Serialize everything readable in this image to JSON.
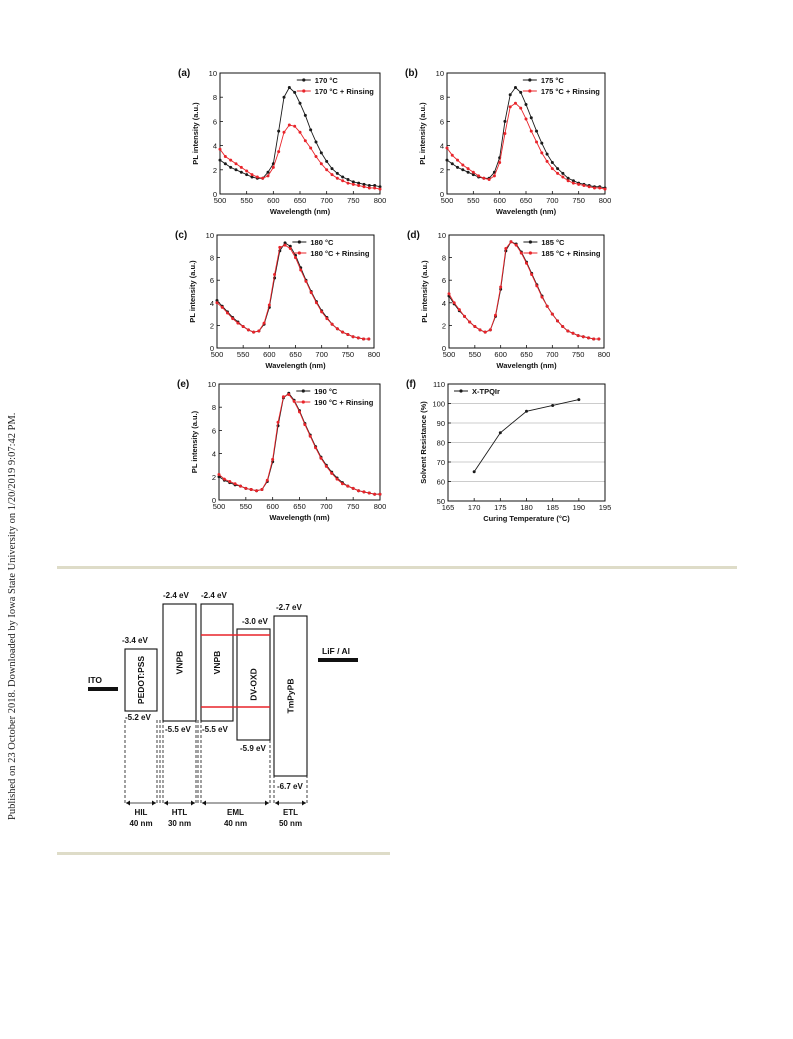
{
  "sidebar_text": "Published on 23 October 2018. Downloaded by Iowa State University on 1/20/2019 9:07:42 PM.",
  "colors": {
    "black_series": "#1a1a1a",
    "red_series": "#e8242a",
    "rule": "#dedcc8",
    "energy_red": "#e8242a"
  },
  "chart_data": [
    {
      "panel": "(a)",
      "type": "line",
      "xlabel": "Wavelength (nm)",
      "ylabel": "PL intensity (a.u.)",
      "xlim": [
        500,
        800
      ],
      "ylim": [
        0,
        10
      ],
      "xticks": [
        "500",
        "550",
        "600",
        "650",
        "700",
        "750",
        "800"
      ],
      "yticks": [
        "0",
        "2",
        "4",
        "6",
        "8",
        "10"
      ],
      "x": [
        500,
        510,
        520,
        530,
        540,
        550,
        560,
        570,
        580,
        590,
        600,
        610,
        620,
        630,
        640,
        650,
        660,
        670,
        680,
        690,
        700,
        710,
        720,
        730,
        740,
        750,
        760,
        770,
        780,
        790,
        800
      ],
      "series": [
        {
          "name": "170 °C",
          "color": "#1a1a1a",
          "values": [
            2.8,
            2.5,
            2.2,
            2.0,
            1.8,
            1.6,
            1.4,
            1.3,
            1.3,
            1.8,
            2.5,
            5.2,
            8.0,
            8.8,
            8.4,
            7.5,
            6.5,
            5.3,
            4.3,
            3.4,
            2.7,
            2.1,
            1.7,
            1.4,
            1.2,
            1.0,
            0.9,
            0.8,
            0.7,
            0.7,
            0.6
          ]
        },
        {
          "name": "170 °C + Rinsing",
          "color": "#e8242a",
          "values": [
            3.7,
            3.1,
            2.8,
            2.5,
            2.2,
            1.9,
            1.6,
            1.4,
            1.3,
            1.5,
            2.2,
            3.5,
            5.1,
            5.7,
            5.6,
            5.1,
            4.4,
            3.8,
            3.1,
            2.5,
            2.0,
            1.6,
            1.3,
            1.1,
            0.9,
            0.8,
            0.7,
            0.6,
            0.5,
            0.5,
            0.4
          ]
        }
      ]
    },
    {
      "panel": "(b)",
      "type": "line",
      "xlabel": "Wavelength (nm)",
      "ylabel": "PL intensity (a.u.)",
      "xlim": [
        500,
        800
      ],
      "ylim": [
        0,
        10
      ],
      "xticks": [
        "500",
        "550",
        "600",
        "650",
        "700",
        "750",
        "800"
      ],
      "yticks": [
        "0",
        "2",
        "4",
        "6",
        "8",
        "10"
      ],
      "x": [
        500,
        510,
        520,
        530,
        540,
        550,
        560,
        570,
        580,
        590,
        600,
        610,
        620,
        630,
        640,
        650,
        660,
        670,
        680,
        690,
        700,
        710,
        720,
        730,
        740,
        750,
        760,
        770,
        780,
        790,
        800
      ],
      "series": [
        {
          "name": "175 °C",
          "color": "#1a1a1a",
          "values": [
            2.8,
            2.5,
            2.2,
            2.0,
            1.8,
            1.6,
            1.4,
            1.3,
            1.3,
            1.8,
            3.0,
            6.0,
            8.2,
            8.8,
            8.4,
            7.4,
            6.3,
            5.2,
            4.2,
            3.3,
            2.6,
            2.1,
            1.7,
            1.3,
            1.1,
            0.9,
            0.8,
            0.7,
            0.6,
            0.6,
            0.5
          ]
        },
        {
          "name": "175 °C + Rinsing",
          "color": "#e8242a",
          "values": [
            3.8,
            3.2,
            2.8,
            2.4,
            2.1,
            1.8,
            1.5,
            1.3,
            1.2,
            1.5,
            2.6,
            5.0,
            7.2,
            7.5,
            7.1,
            6.2,
            5.2,
            4.3,
            3.4,
            2.7,
            2.1,
            1.7,
            1.4,
            1.1,
            0.9,
            0.8,
            0.7,
            0.6,
            0.5,
            0.5,
            0.4
          ]
        }
      ]
    },
    {
      "panel": "(c)",
      "type": "line",
      "xlabel": "Wavelength (nm)",
      "ylabel": "PL intensity (a.u.)",
      "xlim": [
        500,
        800
      ],
      "ylim": [
        0,
        10
      ],
      "xticks": [
        "500",
        "550",
        "600",
        "650",
        "700",
        "750",
        "800"
      ],
      "yticks": [
        "0",
        "2",
        "4",
        "6",
        "8",
        "10"
      ],
      "x": [
        500,
        510,
        520,
        530,
        540,
        550,
        560,
        570,
        580,
        590,
        600,
        610,
        620,
        630,
        640,
        650,
        660,
        670,
        680,
        690,
        700,
        710,
        720,
        730,
        740,
        750,
        760,
        770,
        780,
        790
      ],
      "series": [
        {
          "name": "180 °C",
          "color": "#1a1a1a",
          "values": [
            4.2,
            3.7,
            3.2,
            2.7,
            2.3,
            1.9,
            1.6,
            1.4,
            1.5,
            2.1,
            3.6,
            6.2,
            8.6,
            9.3,
            9.0,
            8.2,
            7.1,
            6.0,
            5.0,
            4.1,
            3.3,
            2.7,
            2.1,
            1.7,
            1.4,
            1.2,
            1.0,
            0.9,
            0.8,
            0.8
          ]
        },
        {
          "name": "180 °C + Rinsing",
          "color": "#e8242a",
          "values": [
            4.0,
            3.6,
            3.1,
            2.6,
            2.2,
            1.9,
            1.6,
            1.4,
            1.5,
            2.2,
            3.8,
            6.5,
            8.9,
            9.1,
            8.8,
            8.0,
            6.9,
            5.9,
            4.9,
            4.0,
            3.2,
            2.6,
            2.1,
            1.7,
            1.4,
            1.2,
            1.0,
            0.9,
            0.8,
            0.8
          ]
        }
      ]
    },
    {
      "panel": "(d)",
      "type": "line",
      "xlabel": "Wavelength (nm)",
      "ylabel": "PL intensity (a.u.)",
      "xlim": [
        500,
        800
      ],
      "ylim": [
        0,
        10
      ],
      "xticks": [
        "500",
        "550",
        "600",
        "650",
        "700",
        "750",
        "800"
      ],
      "yticks": [
        "0",
        "2",
        "4",
        "6",
        "8",
        "10"
      ],
      "x": [
        500,
        510,
        520,
        530,
        540,
        550,
        560,
        570,
        580,
        590,
        600,
        610,
        620,
        630,
        640,
        650,
        660,
        670,
        680,
        690,
        700,
        710,
        720,
        730,
        740,
        750,
        760,
        770,
        780,
        790
      ],
      "series": [
        {
          "name": "185 °C",
          "color": "#1a1a1a",
          "values": [
            4.6,
            3.9,
            3.3,
            2.8,
            2.3,
            1.9,
            1.6,
            1.4,
            1.6,
            2.8,
            5.2,
            8.6,
            9.4,
            9.2,
            8.5,
            7.6,
            6.6,
            5.6,
            4.6,
            3.7,
            3.0,
            2.4,
            1.9,
            1.5,
            1.3,
            1.1,
            1.0,
            0.9,
            0.8,
            0.8
          ]
        },
        {
          "name": "185 °C + Rinsing",
          "color": "#e8242a",
          "values": [
            4.8,
            4.0,
            3.4,
            2.8,
            2.3,
            1.9,
            1.6,
            1.4,
            1.6,
            2.9,
            5.4,
            8.8,
            9.4,
            9.1,
            8.4,
            7.5,
            6.5,
            5.5,
            4.5,
            3.7,
            3.0,
            2.4,
            1.9,
            1.5,
            1.3,
            1.1,
            1.0,
            0.9,
            0.8,
            0.8
          ]
        }
      ]
    },
    {
      "panel": "(e)",
      "type": "line",
      "xlabel": "Wavelength (nm)",
      "ylabel": "PL intensity (a.u.)",
      "xlim": [
        500,
        800
      ],
      "ylim": [
        0,
        10
      ],
      "xticks": [
        "500",
        "550",
        "600",
        "650",
        "700",
        "750",
        "800"
      ],
      "yticks": [
        "0",
        "2",
        "4",
        "6",
        "8",
        "10"
      ],
      "x": [
        500,
        510,
        520,
        530,
        540,
        550,
        560,
        570,
        580,
        590,
        600,
        610,
        620,
        630,
        640,
        650,
        660,
        670,
        680,
        690,
        700,
        710,
        720,
        730,
        740,
        750,
        760,
        770,
        780,
        790,
        800
      ],
      "series": [
        {
          "name": "190 °C",
          "color": "#1a1a1a",
          "values": [
            2.0,
            1.7,
            1.5,
            1.3,
            1.2,
            1.0,
            0.9,
            0.8,
            0.9,
            1.6,
            3.3,
            6.4,
            8.8,
            9.2,
            8.6,
            7.7,
            6.6,
            5.6,
            4.6,
            3.7,
            3.0,
            2.4,
            1.9,
            1.5,
            1.2,
            1.0,
            0.8,
            0.7,
            0.6,
            0.5,
            0.5
          ]
        },
        {
          "name": "190 °C + Rinsing",
          "color": "#e8242a",
          "values": [
            2.2,
            1.8,
            1.6,
            1.4,
            1.2,
            1.0,
            0.9,
            0.8,
            0.9,
            1.7,
            3.5,
            6.7,
            8.9,
            9.1,
            8.5,
            7.6,
            6.5,
            5.5,
            4.5,
            3.6,
            2.9,
            2.3,
            1.8,
            1.4,
            1.2,
            1.0,
            0.8,
            0.7,
            0.6,
            0.5,
            0.5
          ]
        }
      ]
    },
    {
      "panel": "(f)",
      "type": "line",
      "xlabel": "Curing Temperature (°C)",
      "ylabel": "Solvent Resistance (%)",
      "xlim": [
        165,
        195
      ],
      "ylim": [
        50,
        110
      ],
      "xticks": [
        "165",
        "170",
        "175",
        "180",
        "185",
        "190",
        "195"
      ],
      "yticks": [
        "50",
        "60",
        "70",
        "80",
        "90",
        "100",
        "110"
      ],
      "grid": true,
      "x": [
        170,
        175,
        180,
        185,
        190
      ],
      "series": [
        {
          "name": "X-TPQIr",
          "color": "#1a1a1a",
          "values": [
            65,
            85,
            96,
            99,
            102
          ]
        }
      ]
    }
  ],
  "diagram": {
    "ito_label": "ITO",
    "lif_label": "LiF / Al",
    "layers": [
      {
        "name": "PEDOT:PSS",
        "top": "-3.4 eV",
        "bottom": "-5.2 eV"
      },
      {
        "name": "VNPB",
        "top": "-2.4 eV",
        "bottom": "-5.5 eV"
      },
      {
        "name": "VNPB",
        "top": "-2.4 eV",
        "bottom": "-5.5 eV"
      },
      {
        "name": "DV-OXD",
        "top": "-3.0 eV",
        "bottom": "-5.9 eV"
      },
      {
        "name": "TmPyPB",
        "top": "-2.7 eV",
        "bottom": "-6.7 eV"
      }
    ],
    "groups": [
      {
        "name": "HIL",
        "thickness": "40 nm"
      },
      {
        "name": "HTL",
        "thickness": "30 nm"
      },
      {
        "name": "EML",
        "thickness": "40 nm"
      },
      {
        "name": "ETL",
        "thickness": "50 nm"
      }
    ]
  }
}
